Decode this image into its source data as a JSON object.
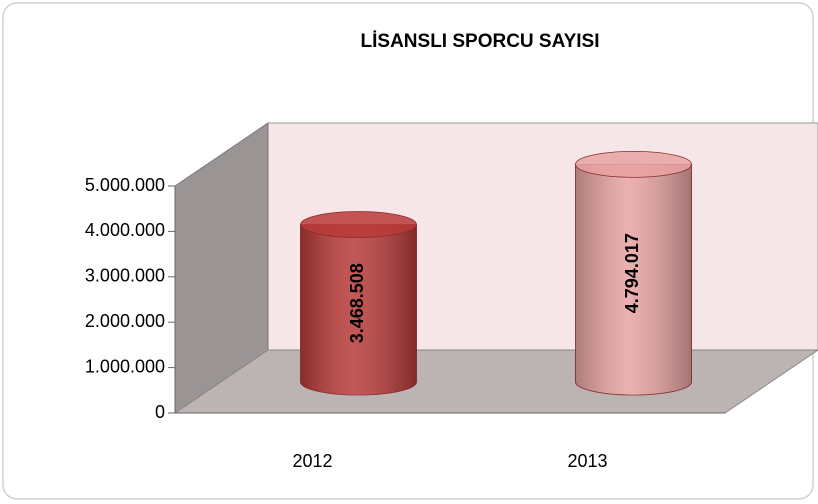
{
  "chart_data": {
    "type": "bar3d",
    "title": "LİSANSLI  SPORCU SAYISI",
    "categories": [
      "2012",
      "2013"
    ],
    "values": [
      3468508,
      4794017
    ],
    "value_labels": [
      "3.468.508",
      "4.794.017"
    ],
    "colors": [
      "#b83a38",
      "#e8a3a3"
    ],
    "ylim": [
      0,
      5000000
    ],
    "yticks": [
      0,
      {
        "value": 1000000,
        "label": "1.000.000"
      },
      {
        "value": 2000000,
        "label": "2.000.000"
      },
      {
        "value": 3000000,
        "label": "3.000.000"
      },
      {
        "value": 4000000,
        "label": "4.000.000"
      },
      {
        "value": 5000000,
        "label": "5.000.000"
      }
    ]
  }
}
